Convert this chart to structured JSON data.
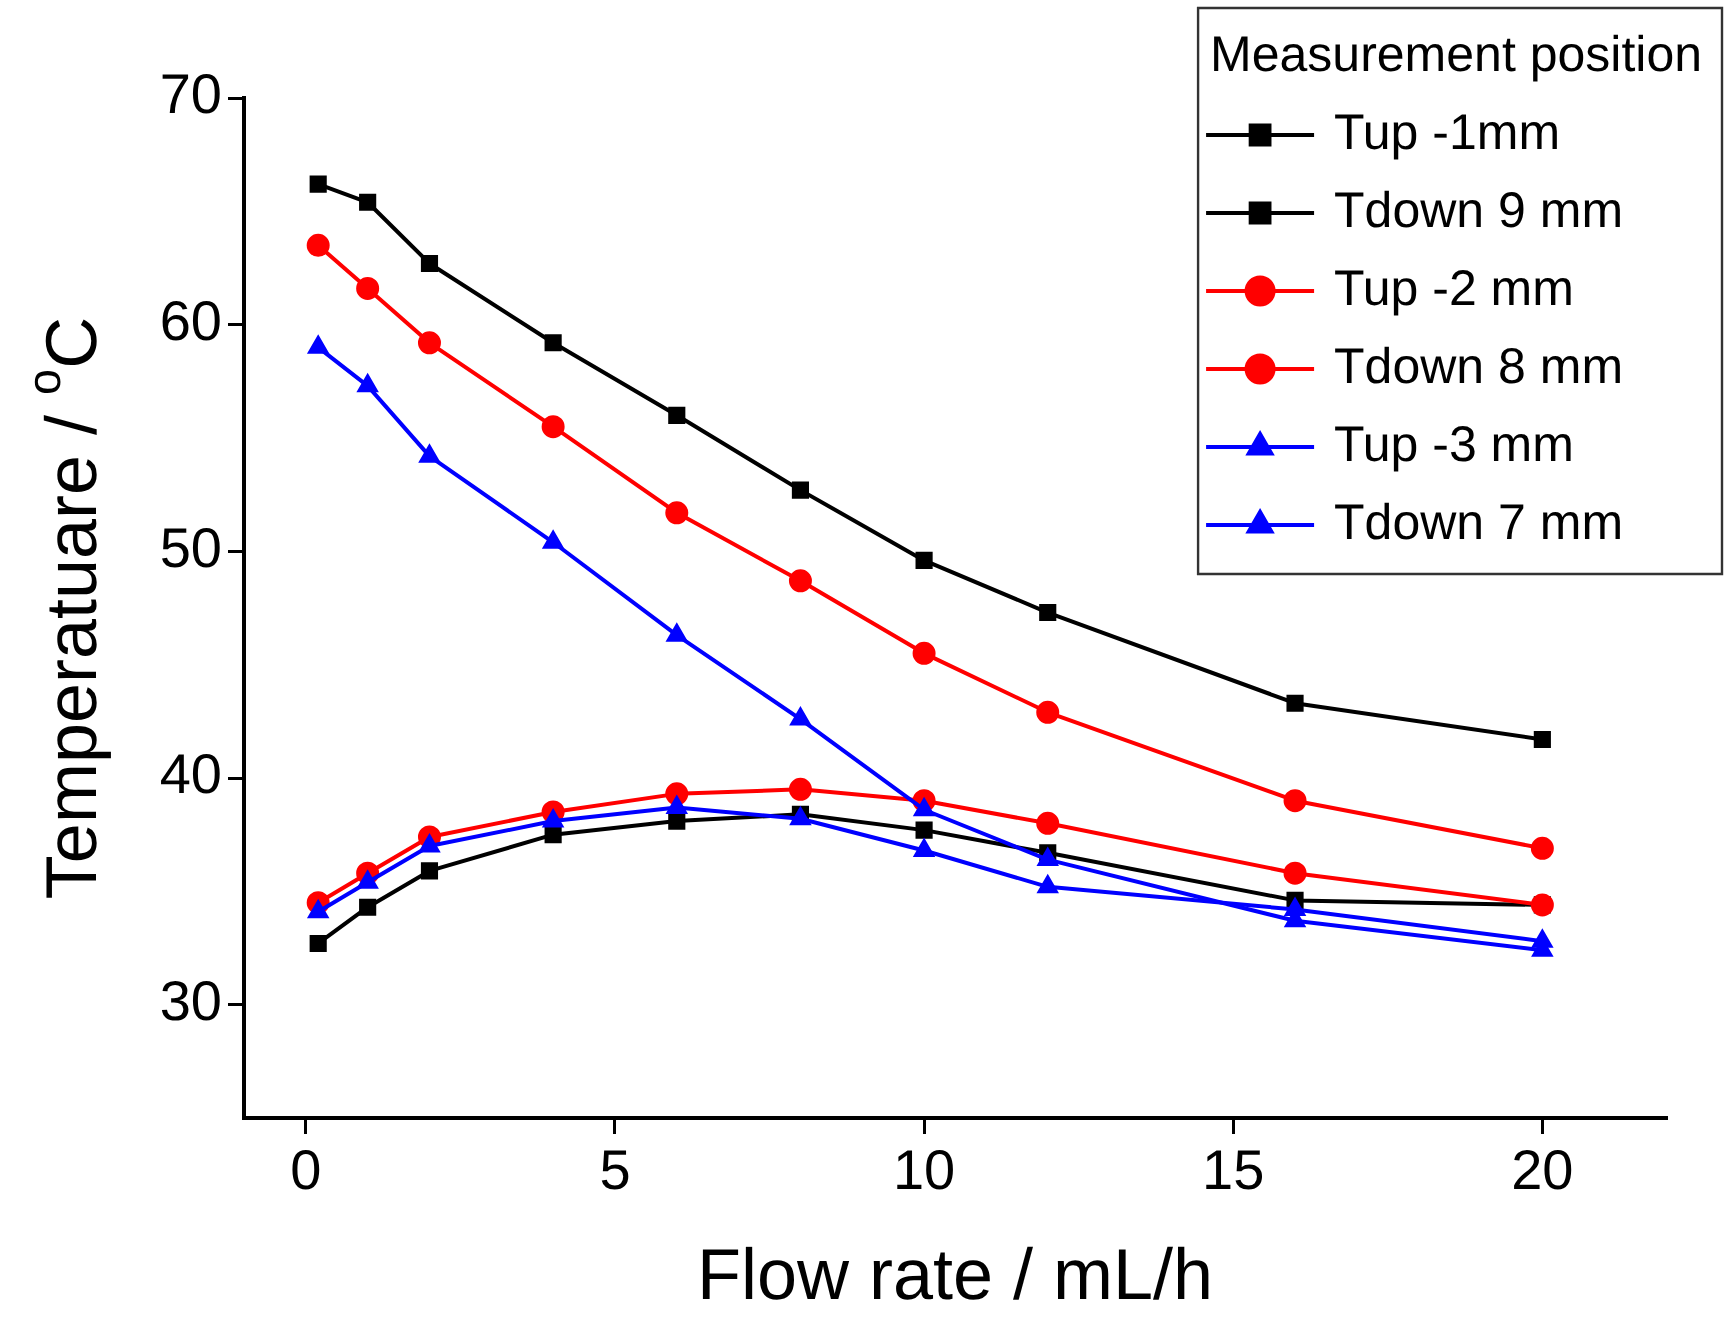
{
  "chart_data": {
    "type": "line",
    "xlabel": "Flow rate / mL/h",
    "ylabel": "Temperatuare / $^{o}$C",
    "legend_title": "Measurement position",
    "legend": "top right",
    "grid": false,
    "line_style": "solid",
    "x": [
      0.2,
      1,
      2,
      4,
      6,
      8,
      10,
      12,
      16,
      20
    ],
    "xlim": [
      -1,
      22
    ],
    "xticks": [
      0,
      5,
      10,
      15,
      20
    ],
    "ylim": [
      25,
      70
    ],
    "yticks": [
      30,
      40,
      50,
      60,
      70
    ],
    "series": [
      {
        "name": "Tup -1mm",
        "color": "#000000",
        "marker": "square",
        "values": [
          66.2,
          65.4,
          62.7,
          59.2,
          56.0,
          52.7,
          49.6,
          47.3,
          43.3,
          41.7
        ]
      },
      {
        "name": "Tdown 9 mm",
        "color": "#000000",
        "marker": "square",
        "values": [
          32.7,
          34.3,
          35.9,
          37.5,
          38.1,
          38.4,
          37.7,
          36.7,
          34.6,
          34.4
        ]
      },
      {
        "name": "Tup -2 mm",
        "color": "#ff0000",
        "marker": "circle",
        "values": [
          63.5,
          61.6,
          59.2,
          55.5,
          51.7,
          48.7,
          45.5,
          42.9,
          39.0,
          36.9
        ]
      },
      {
        "name": "Tdown 8 mm",
        "color": "#ff0000",
        "marker": "circle",
        "values": [
          34.5,
          35.8,
          37.4,
          38.5,
          39.3,
          39.5,
          39.0,
          38.0,
          35.8,
          34.4
        ]
      },
      {
        "name": "Tup -3 mm",
        "color": "#0000ff",
        "marker": "triangle",
        "values": [
          59.0,
          57.3,
          54.2,
          50.4,
          46.3,
          42.6,
          38.6,
          36.4,
          33.7,
          32.4
        ]
      },
      {
        "name": "Tdown 7 mm",
        "color": "#0000ff",
        "marker": "triangle",
        "values": [
          34.1,
          35.4,
          37.0,
          38.1,
          38.7,
          38.2,
          36.8,
          35.2,
          34.2,
          32.8
        ]
      }
    ]
  }
}
